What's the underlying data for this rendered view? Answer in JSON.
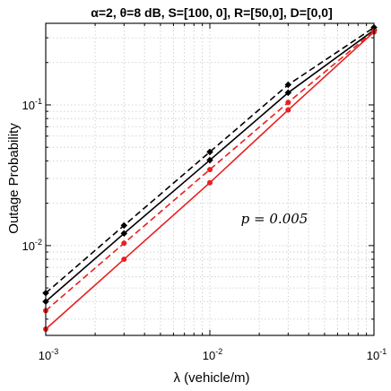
{
  "chart_data": {
    "type": "line",
    "title": "α=2, θ=8 dB, S=[100, 0], R=[50,0], D=[0,0]",
    "xlabel": "λ (vehicle/m)",
    "ylabel": "Outage Probability",
    "xscale": "log",
    "yscale": "log",
    "xlim": [
      0.001,
      0.1
    ],
    "ylim": [
      0.0023,
      0.38
    ],
    "grid": "on (major and minor, dotted)",
    "xticks": [
      {
        "value": 0.001,
        "base": "10",
        "exp": "-3"
      },
      {
        "value": 0.01,
        "base": "10",
        "exp": "-2"
      },
      {
        "value": 0.1,
        "base": "10",
        "exp": "-1"
      }
    ],
    "yticks": [
      {
        "value": 0.01,
        "base": "10",
        "exp": "-2"
      },
      {
        "value": 0.1,
        "base": "10",
        "exp": "-1"
      }
    ],
    "annotation": "p = 0.005",
    "series": [
      {
        "color": "#000000",
        "style": "dashed",
        "marker": "diamond",
        "x": [
          0.001,
          0.003,
          0.01,
          0.03,
          0.1
        ],
        "y": [
          0.0046,
          0.0139,
          0.0463,
          0.139,
          0.355
        ]
      },
      {
        "color": "#000000",
        "style": "solid",
        "marker": "diamond",
        "x": [
          0.001,
          0.003,
          0.01,
          0.03,
          0.1
        ],
        "y": [
          0.004,
          0.0122,
          0.0405,
          0.122,
          0.34
        ]
      },
      {
        "color": "#e8201f",
        "style": "dashed",
        "marker": "circle",
        "x": [
          0.001,
          0.003,
          0.01,
          0.03,
          0.1
        ],
        "y": [
          0.00345,
          0.0104,
          0.0347,
          0.104,
          0.335
        ]
      },
      {
        "color": "#e8201f",
        "style": "solid",
        "marker": "circle",
        "x": [
          0.001,
          0.003,
          0.01,
          0.03,
          0.1
        ],
        "y": [
          0.00255,
          0.008,
          0.028,
          0.092,
          0.33
        ]
      }
    ]
  }
}
